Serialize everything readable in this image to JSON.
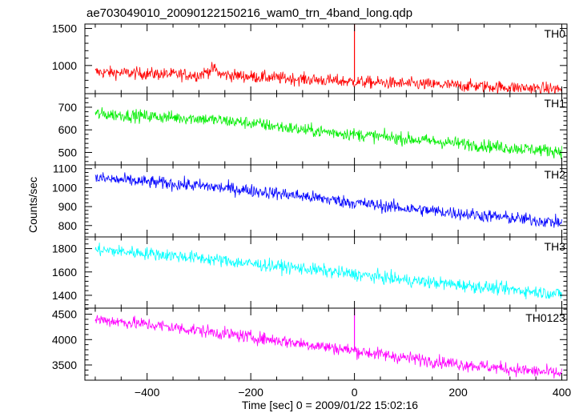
{
  "chart_data": {
    "type": "line",
    "title": "ae703049010_20090122150216_wam0_trn_4band_long.qdp",
    "xlabel": "Time [sec] 0 = 2009/01/22 15:02:16",
    "ylabel": "Counts/sec",
    "xlim": [
      -520,
      410
    ],
    "xticks": [
      -400,
      -200,
      0,
      200,
      400
    ],
    "grid": false,
    "legend": "none",
    "panels": [
      {
        "name": "TH0",
        "color": "#ff0000",
        "ylim": [
          620,
          1560
        ],
        "yticks": [
          1000,
          1500
        ],
        "x": [
          -500,
          -400,
          -300,
          -270,
          -260,
          -200,
          -100,
          0,
          100,
          200,
          300,
          400
        ],
        "values": [
          910,
          890,
          870,
          960,
          880,
          850,
          815,
          780,
          755,
          730,
          705,
          680
        ],
        "spikes": [
          {
            "x": 0,
            "value": 1560
          }
        ]
      },
      {
        "name": "TH1",
        "color": "#00ee00",
        "ylim": [
          445,
          760
        ],
        "yticks": [
          500,
          600,
          700
        ],
        "x": [
          -500,
          -400,
          -300,
          -200,
          -100,
          0,
          100,
          200,
          300,
          400
        ],
        "values": [
          670,
          660,
          650,
          630,
          600,
          580,
          560,
          540,
          520,
          505
        ]
      },
      {
        "name": "TH2",
        "color": "#0000ff",
        "ylim": [
          740,
          1120
        ],
        "yticks": [
          800,
          900,
          1000,
          1100
        ],
        "x": [
          -500,
          -400,
          -300,
          -200,
          -100,
          0,
          100,
          200,
          300,
          400
        ],
        "values": [
          1050,
          1030,
          1010,
          985,
          955,
          920,
          890,
          865,
          840,
          815
        ]
      },
      {
        "name": "TH3",
        "color": "#00ffff",
        "ylim": [
          1290,
          1900
        ],
        "yticks": [
          1400,
          1600,
          1800
        ],
        "x": [
          -500,
          -400,
          -300,
          -200,
          -100,
          0,
          100,
          200,
          300,
          400
        ],
        "values": [
          1790,
          1760,
          1720,
          1670,
          1630,
          1580,
          1530,
          1490,
          1450,
          1410
        ]
      },
      {
        "name": "TH0123",
        "color": "#ff00ff",
        "ylim": [
          3200,
          4620
        ],
        "yticks": [
          3500,
          4000,
          4500
        ],
        "x": [
          -500,
          -400,
          -300,
          -200,
          -100,
          0,
          100,
          200,
          300,
          400
        ],
        "values": [
          4400,
          4300,
          4180,
          4050,
          3920,
          3780,
          3640,
          3520,
          3420,
          3330
        ],
        "spikes": [
          {
            "x": 0,
            "value": 4620
          }
        ]
      }
    ]
  }
}
